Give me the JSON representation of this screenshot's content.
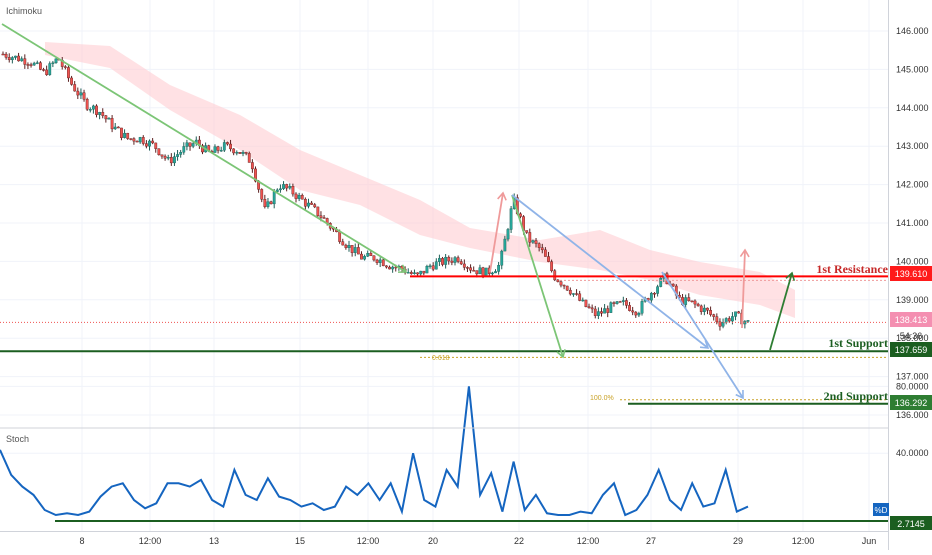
{
  "indicator_label": "Ichimoku",
  "stoch_label": "Stoch",
  "colors": {
    "up": "#26a69a",
    "down": "#ef5350",
    "cloud": "#ffcdd2",
    "resistance": "#ff0000",
    "support": "#1b5e20",
    "arrow_green": "#7cc576",
    "arrow_red": "#ef9a9a",
    "arrow_blue": "#90b4e8",
    "stoch_line": "#1565c0",
    "price_tag": "#f48fb1",
    "fib_gold": "#c9a227"
  },
  "levels": {
    "resistance": {
      "label": "1st Resistance",
      "value": "139.610"
    },
    "support1": {
      "label": "1st Support",
      "value": "137.659"
    },
    "support2": {
      "label": "2nd Support",
      "value": "136.292"
    },
    "current": {
      "value": "138.413"
    },
    "countdown": "54:36",
    "fib_618": "0.618",
    "fib_100": "100.0%"
  },
  "stoch_value": "2.7145",
  "stoch_series_label": "%D",
  "chart_data": [
    {
      "type": "candlestick",
      "title": "",
      "x_ticks": [
        "8",
        "12:00",
        "13",
        "15",
        "12:00",
        "20",
        "22",
        "12:00",
        "27",
        "12:00",
        "29",
        "12:00",
        "Jun"
      ],
      "y_ticks": [
        "136.000",
        "137.000",
        "138.000",
        "139.000",
        "140.000",
        "141.000",
        "142.000",
        "143.000",
        "144.000",
        "145.000",
        "146.000"
      ],
      "ylim": [
        135.8,
        146.6
      ],
      "close_path": [
        145.4,
        145.3,
        145.2,
        144.9,
        145.3,
        144.6,
        144.1,
        143.9,
        143.5,
        143.2,
        143.2,
        143.0,
        142.6,
        142.9,
        143.1,
        142.8,
        143.0,
        142.9,
        142.6,
        141.3,
        142.0,
        141.8,
        141.5,
        141.2,
        140.8,
        140.4,
        140.1,
        140.1,
        139.9,
        139.8,
        139.6,
        139.9,
        140.0,
        140.1,
        139.8,
        139.7,
        139.9,
        141.6,
        140.6,
        140.3,
        139.6,
        139.3,
        138.9,
        138.6,
        138.8,
        138.9,
        138.7,
        139.2,
        139.6,
        139.0,
        138.9,
        138.7,
        138.4,
        138.6,
        138.4
      ]
    },
    {
      "type": "line",
      "title": "",
      "y_ticks": [
        "40.0000",
        "80.0000"
      ],
      "ylim": [
        -3,
        100
      ],
      "series": [
        {
          "name": "%D",
          "values": [
            42,
            27,
            20,
            15,
            6,
            3,
            4,
            3,
            5,
            14,
            20,
            22,
            12,
            7,
            10,
            22,
            22,
            20,
            24,
            12,
            8,
            30,
            15,
            12,
            25,
            14,
            12,
            8,
            10,
            6,
            8,
            20,
            15,
            22,
            12,
            22,
            5,
            40,
            12,
            8,
            30,
            20,
            80,
            15,
            28,
            5,
            35,
            6,
            15,
            4,
            3,
            3,
            5,
            4,
            15,
            22,
            3,
            6,
            15,
            30,
            12,
            6,
            22,
            8,
            10,
            30,
            5,
            8
          ]
        }
      ]
    }
  ]
}
